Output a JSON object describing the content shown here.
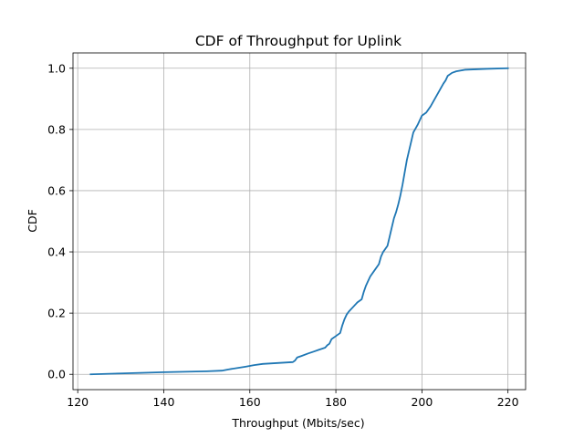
{
  "chart_data": {
    "type": "line",
    "title": "CDF of Throughput for Uplink",
    "xlabel": "Throughput (Mbits/sec)",
    "ylabel": "CDF",
    "xlim": [
      118.9,
      224.1
    ],
    "ylim": [
      -0.05,
      1.05
    ],
    "xticks": [
      120,
      140,
      160,
      180,
      200,
      220
    ],
    "yticks": [
      0.0,
      0.2,
      0.4,
      0.6,
      0.8,
      1.0
    ],
    "xtick_labels": [
      "120",
      "140",
      "160",
      "180",
      "200",
      "220"
    ],
    "ytick_labels": [
      "0.0",
      "0.2",
      "0.4",
      "0.6",
      "0.8",
      "1.0"
    ],
    "grid": true,
    "line_color": "#1f77b4",
    "series": [
      {
        "x": [
          123,
          130,
          140,
          150,
          153.5,
          155,
          159,
          161,
          163,
          170,
          170.5,
          171,
          172,
          173.5,
          175,
          176,
          177.5,
          178,
          178.5,
          179,
          180,
          181,
          181.5,
          182,
          182.5,
          183,
          184,
          185,
          186,
          186.5,
          187,
          187.5,
          188,
          189,
          190,
          190.5,
          191,
          192,
          192.5,
          193,
          193.5,
          194,
          194.5,
          195,
          195.5,
          196,
          196.5,
          197,
          197.5,
          198,
          199,
          199.5,
          200,
          201,
          202,
          203,
          204,
          205,
          205.5,
          206,
          207,
          208,
          210,
          215,
          220
        ],
        "y": [
          0.0,
          0.003,
          0.007,
          0.01,
          0.012,
          0.016,
          0.025,
          0.03,
          0.034,
          0.04,
          0.045,
          0.055,
          0.06,
          0.068,
          0.075,
          0.08,
          0.087,
          0.095,
          0.1,
          0.115,
          0.125,
          0.135,
          0.16,
          0.18,
          0.195,
          0.205,
          0.22,
          0.235,
          0.245,
          0.27,
          0.29,
          0.305,
          0.32,
          0.34,
          0.36,
          0.385,
          0.4,
          0.42,
          0.45,
          0.48,
          0.51,
          0.53,
          0.555,
          0.585,
          0.62,
          0.66,
          0.7,
          0.73,
          0.76,
          0.79,
          0.815,
          0.83,
          0.845,
          0.855,
          0.875,
          0.9,
          0.925,
          0.95,
          0.96,
          0.975,
          0.985,
          0.99,
          0.995,
          0.998,
          1.0
        ]
      }
    ]
  }
}
